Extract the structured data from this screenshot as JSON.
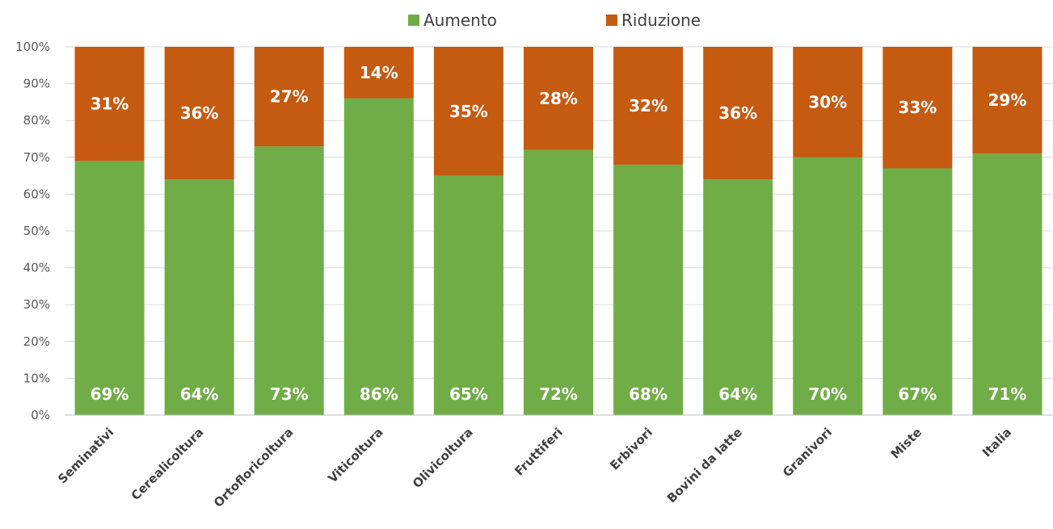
{
  "chart_data": {
    "type": "bar",
    "stacked": true,
    "categories": [
      "Seminativi",
      "Cerealicoltura",
      "Ortofloricoltura",
      "Viticoltura",
      "Olivicoltura",
      "Fruttiferi",
      "Erbivori",
      "Bovini da latte",
      "Granivori",
      "Miste",
      "Italia"
    ],
    "series": [
      {
        "name": "Aumento",
        "color": "#70ad47",
        "values": [
          69,
          64,
          73,
          86,
          65,
          72,
          68,
          64,
          70,
          67,
          71
        ]
      },
      {
        "name": "Riduzione",
        "color": "#c55a11",
        "values": [
          31,
          36,
          27,
          14,
          35,
          28,
          32,
          36,
          30,
          33,
          29
        ]
      }
    ],
    "y_ticks": [
      "0%",
      "10%",
      "20%",
      "30%",
      "40%",
      "50%",
      "60%",
      "70%",
      "80%",
      "90%",
      "100%"
    ],
    "ylim": [
      0,
      100
    ],
    "grid": true,
    "legend_position": "top-center"
  }
}
